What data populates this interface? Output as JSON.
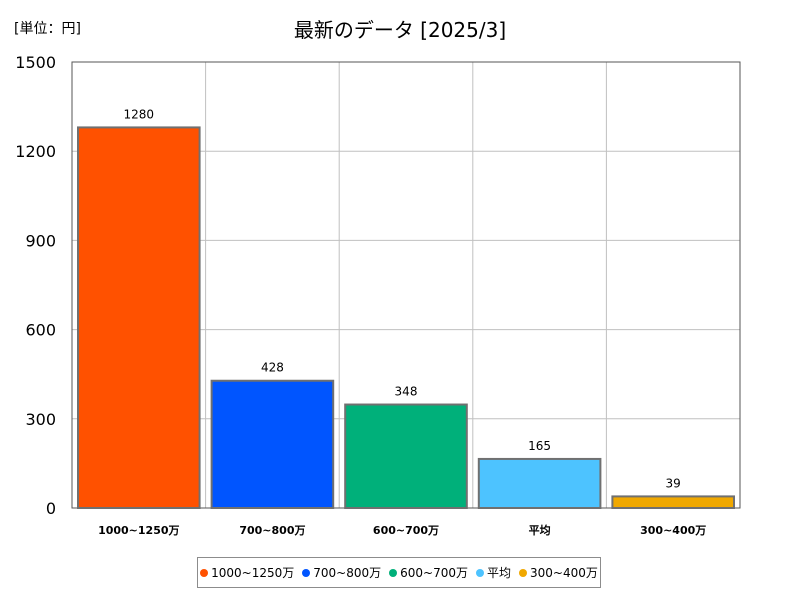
{
  "chart_data": {
    "type": "bar",
    "unit_label": "[単位：円]",
    "title": "最新のデータ [2025/3]",
    "categories": [
      "1000~1250万",
      "700~800万",
      "600~700万",
      "平均",
      "300~400万"
    ],
    "values": [
      1280,
      428,
      348,
      165,
      39
    ],
    "colors": [
      "#ff5100",
      "#0055ff",
      "#00b07a",
      "#4dc3ff",
      "#f0a800"
    ],
    "data_labels": [
      "1280",
      "428",
      "348",
      "165",
      "39"
    ],
    "ylim": [
      0,
      1500
    ],
    "yticks": [
      0,
      300,
      600,
      900,
      1200,
      1500
    ],
    "grid": true,
    "legend": {
      "placement": "bottom",
      "entries": [
        "1000~1250万",
        "700~800万",
        "600~700万",
        "平均",
        "300~400万"
      ]
    }
  }
}
